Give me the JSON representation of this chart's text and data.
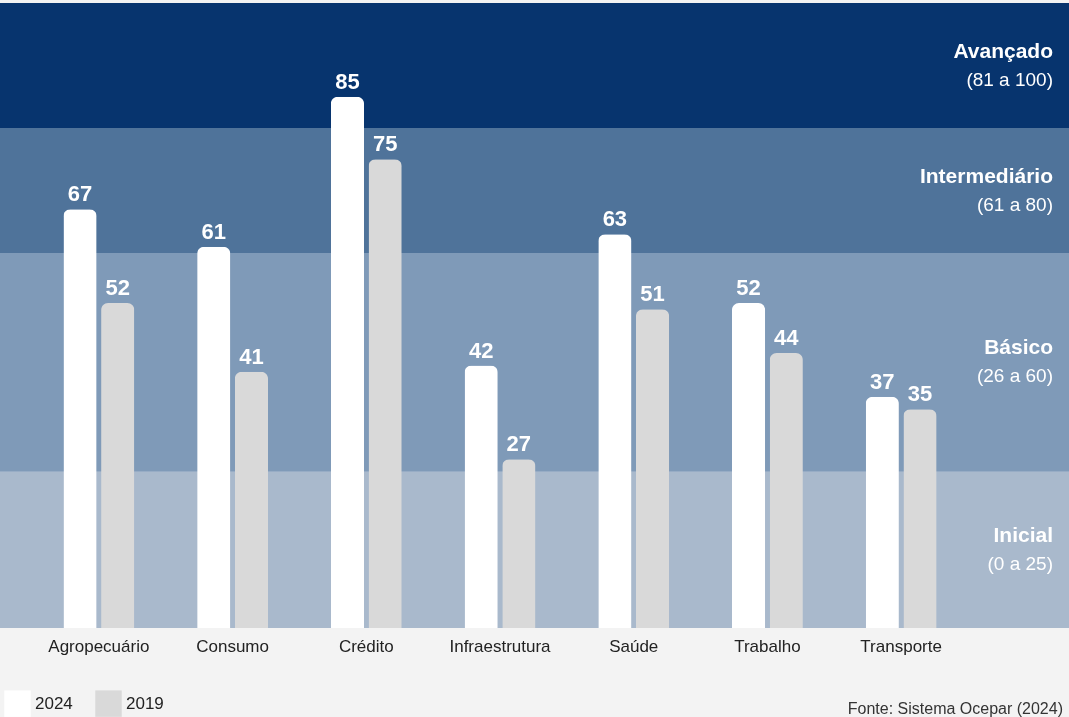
{
  "chart_data": {
    "type": "bar",
    "categories": [
      "Agropecuário",
      "Consumo",
      "Crédito",
      "Infraestrutura",
      "Saúde",
      "Trabalho",
      "Transporte"
    ],
    "series": [
      {
        "name": "2024",
        "color": "#ffffff",
        "values": [
          67,
          61,
          85,
          42,
          63,
          52,
          37
        ]
      },
      {
        "name": "2019",
        "color": "#d9d9d9",
        "values": [
          52,
          41,
          75,
          27,
          51,
          44,
          35
        ]
      }
    ],
    "relative": false,
    "ylim": [
      0,
      100
    ],
    "data_labels": true,
    "legend": "bottom left",
    "bands": [
      {
        "axis": "y",
        "from": 0,
        "to": 25,
        "label": "Inicial\n(0 a 25)",
        "color": "#a9b9cc"
      },
      {
        "axis": "y",
        "from": 25,
        "to": 60,
        "label": "Básico\n(26 a 60)",
        "color": "#7f9ab8"
      },
      {
        "axis": "y",
        "from": 60,
        "to": 80,
        "label": "Intermediário\n(61 a 80)",
        "color": "#4f739a"
      },
      {
        "axis": "y",
        "from": 80,
        "to": 100,
        "label": "Avançado\n(81 a 100)",
        "color": "#07346e"
      }
    ],
    "annotations": [
      "Fonte: Sistema Ocepar (2024)"
    ]
  }
}
